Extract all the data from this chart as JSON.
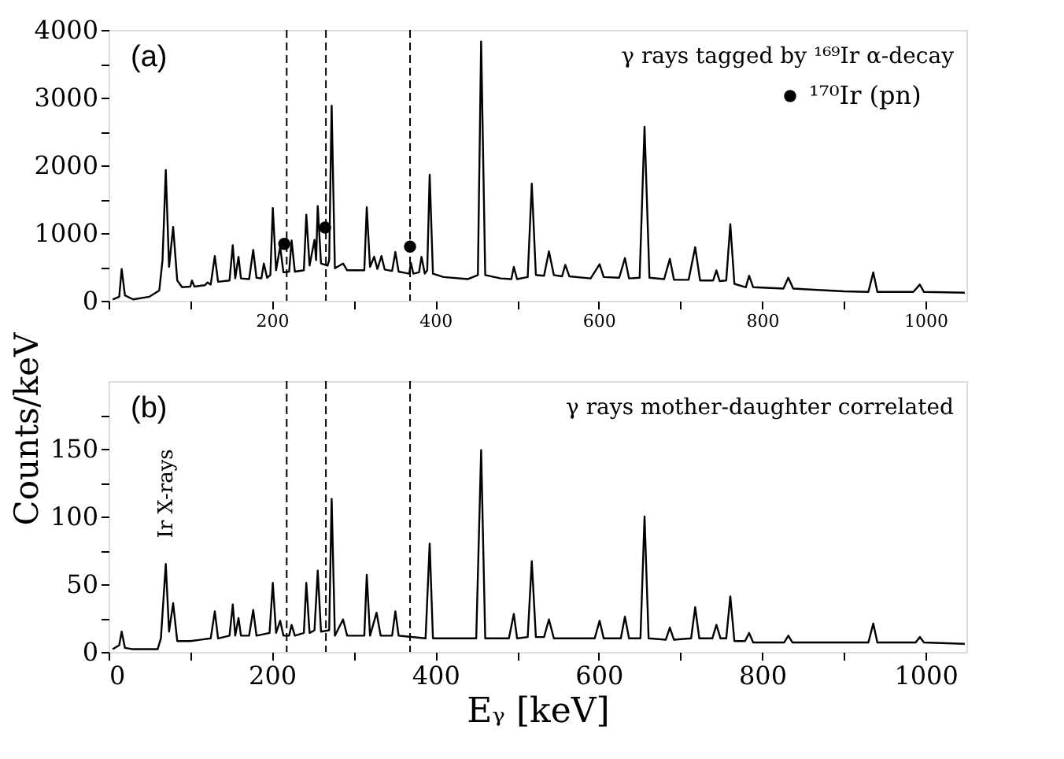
{
  "chart_data": [
    {
      "type": "line",
      "xlim": [
        0,
        1050
      ],
      "ylim": [
        0,
        4000
      ],
      "xticks": [
        {
          "value": 0,
          "label": null
        },
        {
          "value": 100,
          "label": null
        },
        200,
        {
          "value": 300,
          "label": null
        },
        400,
        {
          "value": 500,
          "label": null
        },
        600,
        {
          "value": 700,
          "label": null
        },
        800,
        {
          "value": 900,
          "label": null
        },
        1000
      ],
      "yticks": [
        0,
        {
          "value": 500,
          "label": null
        },
        1000,
        {
          "value": 1500,
          "label": null
        },
        2000,
        {
          "value": 2500,
          "label": null
        },
        3000,
        {
          "value": 3500,
          "label": null
        },
        4000
      ],
      "annotations": [
        "(a)",
        "γ rays tagged by ¹⁶⁹Ir α-decay"
      ],
      "legend": "top right",
      "ref_lines": [
        {
          "axis": "x",
          "value": 218,
          "color": "#000000",
          "line_style": "dashed"
        },
        {
          "axis": "x",
          "value": 266,
          "color": "#000000",
          "line_style": "dashed"
        },
        {
          "axis": "x",
          "value": 369,
          "color": "#000000",
          "line_style": "dashed"
        }
      ],
      "series": [
        {
          "color": "#000000",
          "x": [
            5,
            13,
            16,
            20,
            30,
            50,
            62,
            66,
            70,
            74,
            79,
            84,
            90,
            100,
            102,
            105,
            118,
            121,
            125,
            130,
            134,
            148,
            152,
            155,
            159,
            162,
            172,
            177,
            181,
            187,
            190,
            194,
            198,
            201,
            205,
            210,
            214,
            221,
            224,
            228,
            239,
            242,
            246,
            252,
            254,
            256,
            260,
            268,
            270,
            273,
            277,
            287,
            292,
            313,
            316,
            320,
            325,
            329,
            334,
            338,
            347,
            351,
            355,
            368,
            370,
            373,
            380,
            383,
            387,
            390,
            393,
            397,
            410,
            440,
            452,
            456,
            461,
            480,
            493,
            496,
            500,
            513,
            518,
            523,
            533,
            539,
            545,
            555,
            559,
            564,
            590,
            601,
            606,
            625,
            632,
            637,
            650,
            656,
            662,
            680,
            687,
            692,
            710,
            718,
            724,
            740,
            744,
            748,
            756,
            761,
            766,
            780,
            784,
            789,
            826,
            832,
            838,
            900,
            930,
            936,
            941,
            985,
            993,
            998,
            1048
          ],
          "values": [
            20,
            60,
            470,
            80,
            20,
            60,
            150,
            600,
            1930,
            500,
            1090,
            300,
            200,
            210,
            300,
            210,
            230,
            270,
            240,
            660,
            280,
            300,
            820,
            330,
            650,
            330,
            320,
            750,
            340,
            330,
            550,
            340,
            380,
            1370,
            450,
            800,
            420,
            430,
            890,
            430,
            450,
            1270,
            520,
            900,
            600,
            1400,
            550,
            520,
            600,
            2880,
            480,
            550,
            450,
            450,
            1380,
            500,
            650,
            470,
            660,
            460,
            440,
            720,
            430,
            400,
            560,
            400,
            420,
            650,
            400,
            450,
            1860,
            400,
            350,
            320,
            380,
            3830,
            380,
            330,
            320,
            500,
            320,
            350,
            1730,
            380,
            370,
            730,
            380,
            360,
            530,
            360,
            330,
            540,
            350,
            340,
            630,
            330,
            340,
            2570,
            340,
            320,
            620,
            310,
            310,
            790,
            300,
            300,
            450,
            290,
            300,
            1130,
            250,
            200,
            370,
            200,
            180,
            340,
            180,
            140,
            130,
            420,
            130,
            130,
            240,
            130,
            120
          ]
        },
        {
          "type": "scatter",
          "name": "¹⁷⁰Ir (pn)",
          "color": "#000000",
          "marker": "circle",
          "x": [
            215,
            265,
            369
          ],
          "values": [
            840,
            1080,
            800
          ]
        }
      ]
    },
    {
      "type": "line",
      "xlim": [
        0,
        1050
      ],
      "ylim": [
        0,
        200
      ],
      "xticks": [
        0,
        {
          "value": 100,
          "label": null
        },
        200,
        {
          "value": 300,
          "label": null
        },
        400,
        {
          "value": 500,
          "label": null
        },
        600,
        {
          "value": 700,
          "label": null
        },
        800,
        {
          "value": 900,
          "label": null
        },
        1000
      ],
      "yticks": [
        0,
        {
          "value": 25,
          "label": null
        },
        50,
        {
          "value": 75,
          "label": null
        },
        100,
        {
          "value": 125,
          "label": null
        },
        150,
        {
          "value": 175,
          "label": null
        }
      ],
      "xlabel": "Eᵧ [keV]",
      "ylabel": "Counts/keV",
      "annotations": [
        "(b)",
        "γ rays mother-daughter correlated",
        {
          "text": "Ir X-rays",
          "x": 70,
          "y": 70
        }
      ],
      "ref_lines": [
        {
          "axis": "x",
          "value": 218,
          "color": "#000000",
          "line_style": "dashed"
        },
        {
          "axis": "x",
          "value": 266,
          "color": "#000000",
          "line_style": "dashed"
        },
        {
          "axis": "x",
          "value": 369,
          "color": "#000000",
          "line_style": "dashed"
        }
      ],
      "series": [
        {
          "color": "#000000",
          "x": [
            5,
            13,
            16,
            20,
            30,
            60,
            64,
            70,
            74,
            79,
            84,
            100,
            125,
            130,
            134,
            148,
            152,
            155,
            159,
            162,
            172,
            177,
            181,
            197,
            201,
            205,
            210,
            214,
            221,
            224,
            228,
            239,
            242,
            246,
            252,
            256,
            260,
            270,
            273,
            277,
            287,
            292,
            313,
            316,
            320,
            328,
            333,
            347,
            351,
            355,
            388,
            393,
            397,
            420,
            450,
            456,
            461,
            490,
            496,
            500,
            513,
            518,
            523,
            533,
            539,
            545,
            595,
            601,
            606,
            627,
            632,
            637,
            651,
            656,
            661,
            682,
            687,
            692,
            713,
            718,
            723,
            739,
            744,
            749,
            756,
            761,
            766,
            779,
            784,
            789,
            827,
            832,
            837,
            930,
            936,
            941,
            988,
            993,
            998,
            1048
          ],
          "values": [
            2,
            5,
            15,
            3,
            2,
            2,
            10,
            65,
            15,
            36,
            8,
            8,
            10,
            30,
            10,
            12,
            35,
            12,
            25,
            12,
            12,
            31,
            12,
            14,
            51,
            14,
            23,
            12,
            12,
            20,
            12,
            14,
            51,
            14,
            16,
            60,
            15,
            16,
            113,
            12,
            24,
            12,
            12,
            57,
            12,
            29,
            12,
            12,
            30,
            12,
            10,
            80,
            10,
            10,
            10,
            149,
            10,
            10,
            28,
            10,
            11,
            67,
            11,
            11,
            24,
            10,
            10,
            23,
            10,
            10,
            26,
            10,
            10,
            100,
            10,
            9,
            18,
            9,
            10,
            33,
            10,
            10,
            20,
            10,
            10,
            41,
            8,
            8,
            14,
            7,
            7,
            12,
            7,
            7,
            21,
            7,
            7,
            11,
            7,
            6
          ]
        }
      ]
    }
  ]
}
